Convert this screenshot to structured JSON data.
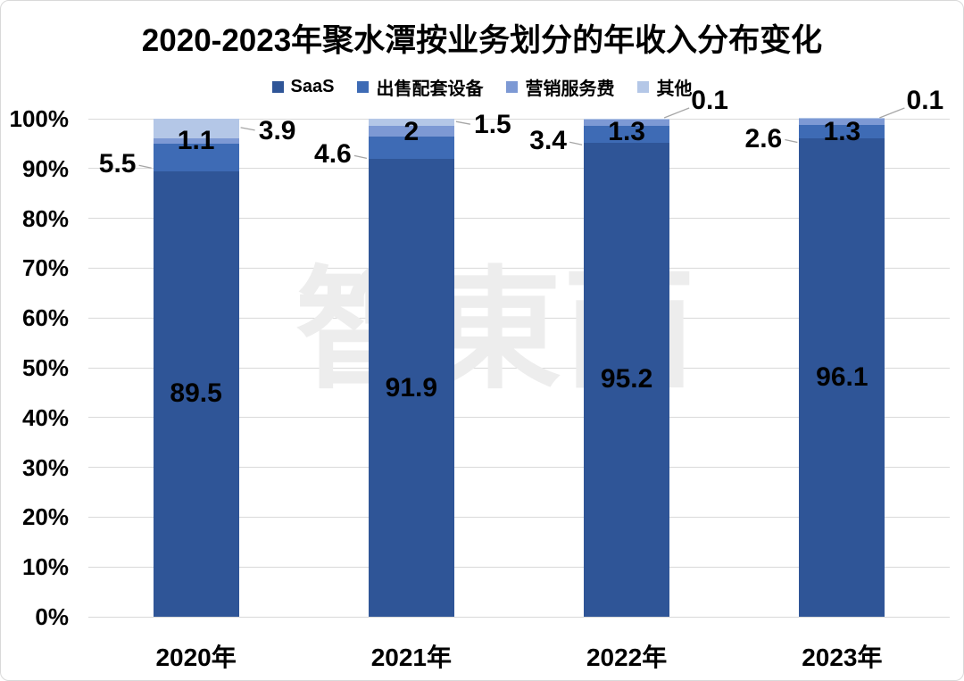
{
  "frame": {
    "background": "#ffffff",
    "border_color": "#d9d9d9"
  },
  "watermark": {
    "text": "智東西"
  },
  "chart_data": {
    "type": "bar",
    "variant": "stacked-100-percent-column",
    "title": "2020-2023年聚水潭按业务划分的年收入分布变化",
    "categories": [
      "2020年",
      "2021年",
      "2022年",
      "2023年"
    ],
    "series": [
      {
        "name": "SaaS",
        "color": "#2F5597",
        "values": [
          89.5,
          91.9,
          95.2,
          96.1
        ],
        "label_pos": "inside-center"
      },
      {
        "name": "出售配套设备",
        "color": "#3E6BB5",
        "values": [
          5.5,
          4.6,
          3.4,
          2.6
        ],
        "label_pos": "outside-left"
      },
      {
        "name": "营销服务费",
        "color": "#7D99D4",
        "values": [
          1.1,
          2,
          1.3,
          1.3
        ],
        "label_pos": "inside-top"
      },
      {
        "name": "其他",
        "color": "#B4C7E7",
        "values": [
          3.9,
          1.5,
          0.1,
          0.1
        ],
        "label_pos": "outside-right"
      }
    ],
    "y_axis": {
      "min": 0,
      "max": 100,
      "step": 10,
      "ticks": [
        "0%",
        "10%",
        "20%",
        "30%",
        "40%",
        "50%",
        "60%",
        "70%",
        "80%",
        "90%",
        "100%"
      ]
    },
    "x_axis_label": "",
    "y_axis_label": "",
    "legend_position": "top",
    "grid": true,
    "data_label_color": "#000000",
    "leader_line_color": "#a6a6a6",
    "gridline_color": "#d9d9d9"
  }
}
